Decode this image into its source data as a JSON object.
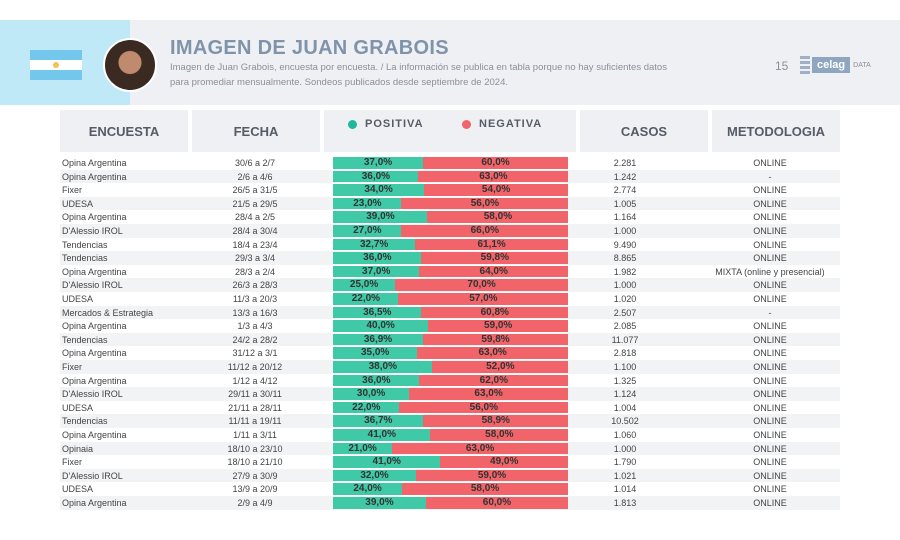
{
  "header": {
    "title": "IMAGEN DE JUAN GRABOIS",
    "subtitle_line1": "Imagen de Juan Grabois, encuesta por encuesta. / La información se publica en tabla porque no hay suficientes datos",
    "subtitle_line2": "para promediar mensualmente. Sondeos publicados desde septiembre de 2024.",
    "page_number": "15",
    "logo_text": "celag",
    "logo_suffix": "DATA"
  },
  "colors": {
    "positiva": "#3fc9a6",
    "negativa": "#f0646a"
  },
  "columns": {
    "encuesta": "ENCUESTA",
    "fecha": "FECHA",
    "positiva": "POSITIVA",
    "negativa": "NEGATIVA",
    "casos": "CASOS",
    "metodologia": "METODOLOGIA"
  },
  "rows": [
    {
      "encuesta": "Opina Argentina",
      "fecha": "30/6 a 2/7",
      "pos": "37,0%",
      "neg": "60,0%",
      "p": 37.0,
      "n": 60.0,
      "casos": "2.281",
      "met": "ONLINE"
    },
    {
      "encuesta": "Opina Argentina",
      "fecha": "2/6 a 4/6",
      "pos": "36,0%",
      "neg": "63,0%",
      "p": 36.0,
      "n": 63.0,
      "casos": "1.242",
      "met": "-"
    },
    {
      "encuesta": "Fixer",
      "fecha": "26/5 a 31/5",
      "pos": "34,0%",
      "neg": "54,0%",
      "p": 34.0,
      "n": 54.0,
      "casos": "2.774",
      "met": "ONLINE"
    },
    {
      "encuesta": "UDESA",
      "fecha": "21/5 a 29/5",
      "pos": "23,0%",
      "neg": "56,0%",
      "p": 23.0,
      "n": 56.0,
      "casos": "1.005",
      "met": "ONLINE"
    },
    {
      "encuesta": "Opina Argentina",
      "fecha": "28/4 a 2/5",
      "pos": "39,0%",
      "neg": "58,0%",
      "p": 39.0,
      "n": 58.0,
      "casos": "1.164",
      "met": "ONLINE"
    },
    {
      "encuesta": "D'Alessio IROL",
      "fecha": "28/4 a 30/4",
      "pos": "27,0%",
      "neg": "66,0%",
      "p": 27.0,
      "n": 66.0,
      "casos": "1.000",
      "met": "ONLINE"
    },
    {
      "encuesta": "Tendencias",
      "fecha": "18/4 a 23/4",
      "pos": "32,7%",
      "neg": "61,1%",
      "p": 32.7,
      "n": 61.1,
      "casos": "9.490",
      "met": "ONLINE"
    },
    {
      "encuesta": "Tendencias",
      "fecha": "29/3 a 3/4",
      "pos": "36,0%",
      "neg": "59,8%",
      "p": 36.0,
      "n": 59.8,
      "casos": "8.865",
      "met": "ONLINE"
    },
    {
      "encuesta": "Opina Argentina",
      "fecha": "28/3 a 2/4",
      "pos": "37,0%",
      "neg": "64,0%",
      "p": 37.0,
      "n": 64.0,
      "casos": "1.982",
      "met": "MIXTA (online y presencial)"
    },
    {
      "encuesta": "D'Alessio IROL",
      "fecha": "26/3 a 28/3",
      "pos": "25,0%",
      "neg": "70,0%",
      "p": 25.0,
      "n": 70.0,
      "casos": "1.000",
      "met": "ONLINE"
    },
    {
      "encuesta": "UDESA",
      "fecha": "11/3 a 20/3",
      "pos": "22,0%",
      "neg": "57,0%",
      "p": 22.0,
      "n": 57.0,
      "casos": "1.020",
      "met": "ONLINE"
    },
    {
      "encuesta": "Mercados & Estrategia",
      "fecha": "13/3 a 16/3",
      "pos": "36,5%",
      "neg": "60,8%",
      "p": 36.5,
      "n": 60.8,
      "casos": "2.507",
      "met": "-"
    },
    {
      "encuesta": "Opina Argentina",
      "fecha": "1/3 a 4/3",
      "pos": "40,0%",
      "neg": "59,0%",
      "p": 40.0,
      "n": 59.0,
      "casos": "2.085",
      "met": "ONLINE"
    },
    {
      "encuesta": "Tendencias",
      "fecha": "24/2 a 28/2",
      "pos": "36,9%",
      "neg": "59,8%",
      "p": 36.9,
      "n": 59.8,
      "casos": "11.077",
      "met": "ONLINE"
    },
    {
      "encuesta": "Opina Argentina",
      "fecha": "31/12 a 3/1",
      "pos": "35,0%",
      "neg": "63,0%",
      "p": 35.0,
      "n": 63.0,
      "casos": "2.818",
      "met": "ONLINE"
    },
    {
      "encuesta": "Fixer",
      "fecha": "11/12 a 20/12",
      "pos": "38,0%",
      "neg": "52,0%",
      "p": 38.0,
      "n": 52.0,
      "casos": "1.100",
      "met": "ONLINE"
    },
    {
      "encuesta": "Opina Argentina",
      "fecha": "1/12 a 4/12",
      "pos": "36,0%",
      "neg": "62,0%",
      "p": 36.0,
      "n": 62.0,
      "casos": "1.325",
      "met": "ONLINE"
    },
    {
      "encuesta": "D'Alessio IROL",
      "fecha": "29/11 a 30/11",
      "pos": "30,0%",
      "neg": "63,0%",
      "p": 30.0,
      "n": 63.0,
      "casos": "1.124",
      "met": "ONLINE"
    },
    {
      "encuesta": "UDESA",
      "fecha": "21/11 a 28/11",
      "pos": "22,0%",
      "neg": "56,0%",
      "p": 22.0,
      "n": 56.0,
      "casos": "1.004",
      "met": "ONLINE"
    },
    {
      "encuesta": "Tendencias",
      "fecha": "11/11 a 19/11",
      "pos": "36,7%",
      "neg": "58,9%",
      "p": 36.7,
      "n": 58.9,
      "casos": "10.502",
      "met": "ONLINE"
    },
    {
      "encuesta": "Opina Argentina",
      "fecha": "1/11 a 3/11",
      "pos": "41,0%",
      "neg": "58,0%",
      "p": 41.0,
      "n": 58.0,
      "casos": "1.060",
      "met": "ONLINE"
    },
    {
      "encuesta": "Opinaia",
      "fecha": "18/10 a 23/10",
      "pos": "21,0%",
      "neg": "63,0%",
      "p": 21.0,
      "n": 63.0,
      "casos": "1.000",
      "met": "ONLINE"
    },
    {
      "encuesta": "Fixer",
      "fecha": "18/10 a 21/10",
      "pos": "41,0%",
      "neg": "49,0%",
      "p": 41.0,
      "n": 49.0,
      "casos": "1.790",
      "met": "ONLINE"
    },
    {
      "encuesta": "D'Alessio IROL",
      "fecha": "27/9 a 30/9",
      "pos": "32,0%",
      "neg": "59,0%",
      "p": 32.0,
      "n": 59.0,
      "casos": "1.021",
      "met": "ONLINE"
    },
    {
      "encuesta": "UDESA",
      "fecha": "13/9 a 20/9",
      "pos": "24,0%",
      "neg": "58,0%",
      "p": 24.0,
      "n": 58.0,
      "casos": "1.014",
      "met": "ONLINE"
    },
    {
      "encuesta": "Opina Argentina",
      "fecha": "2/9 a 4/9",
      "pos": "39,0%",
      "neg": "60,0%",
      "p": 39.0,
      "n": 60.0,
      "casos": "1.813",
      "met": "ONLINE"
    }
  ]
}
